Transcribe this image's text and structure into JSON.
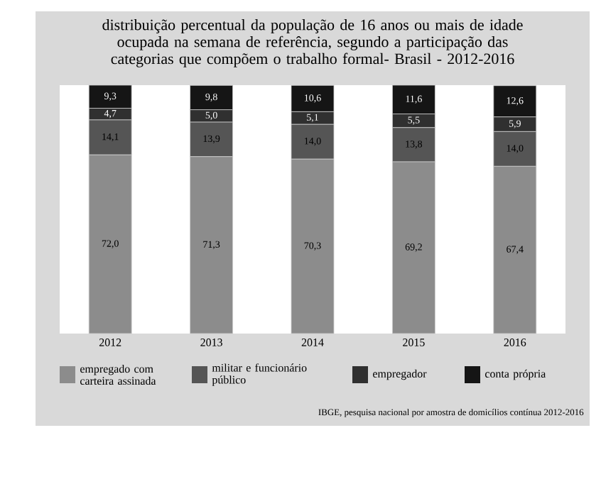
{
  "chart_data": {
    "type": "bar",
    "stacked": true,
    "title": "distribuição percentual da população de 16 anos ou mais de idade ocupada na semana de referência, segundo a participação das categorias que compõem o trabalho formal- Brasil - 2012-2016",
    "categories": [
      "2012",
      "2013",
      "2014",
      "2015",
      "2016"
    ],
    "series": [
      {
        "name": "empregado com carteira assinada",
        "color": "#8c8c8c",
        "values": [
          72.0,
          71.3,
          70.3,
          69.2,
          67.4
        ],
        "value_labels": [
          "72,0",
          "71,3",
          "70,3",
          "69,2",
          "67,4"
        ]
      },
      {
        "name": "militar e funcionário público",
        "color": "#555555",
        "values": [
          14.1,
          13.9,
          14.0,
          13.8,
          14.0
        ],
        "value_labels": [
          "14,1",
          "13,9",
          "14,0",
          "13,8",
          "14,0"
        ]
      },
      {
        "name": "empregador",
        "color": "#303030",
        "values": [
          4.7,
          5.0,
          5.1,
          5.5,
          5.9
        ],
        "value_labels": [
          "4,7",
          "5,0",
          "5,1",
          "5,5",
          "5,9"
        ]
      },
      {
        "name": "conta própria",
        "color": "#151515",
        "values": [
          9.3,
          9.8,
          10.6,
          11.6,
          12.6
        ],
        "value_labels": [
          "9,3",
          "9,8",
          "10,6",
          "11,6",
          "12,6"
        ]
      }
    ],
    "legend": "bottom",
    "annotations": [
      "IBGE, pesquisa nacional por amostra de domicílios contínua 2012-2016"
    ]
  }
}
